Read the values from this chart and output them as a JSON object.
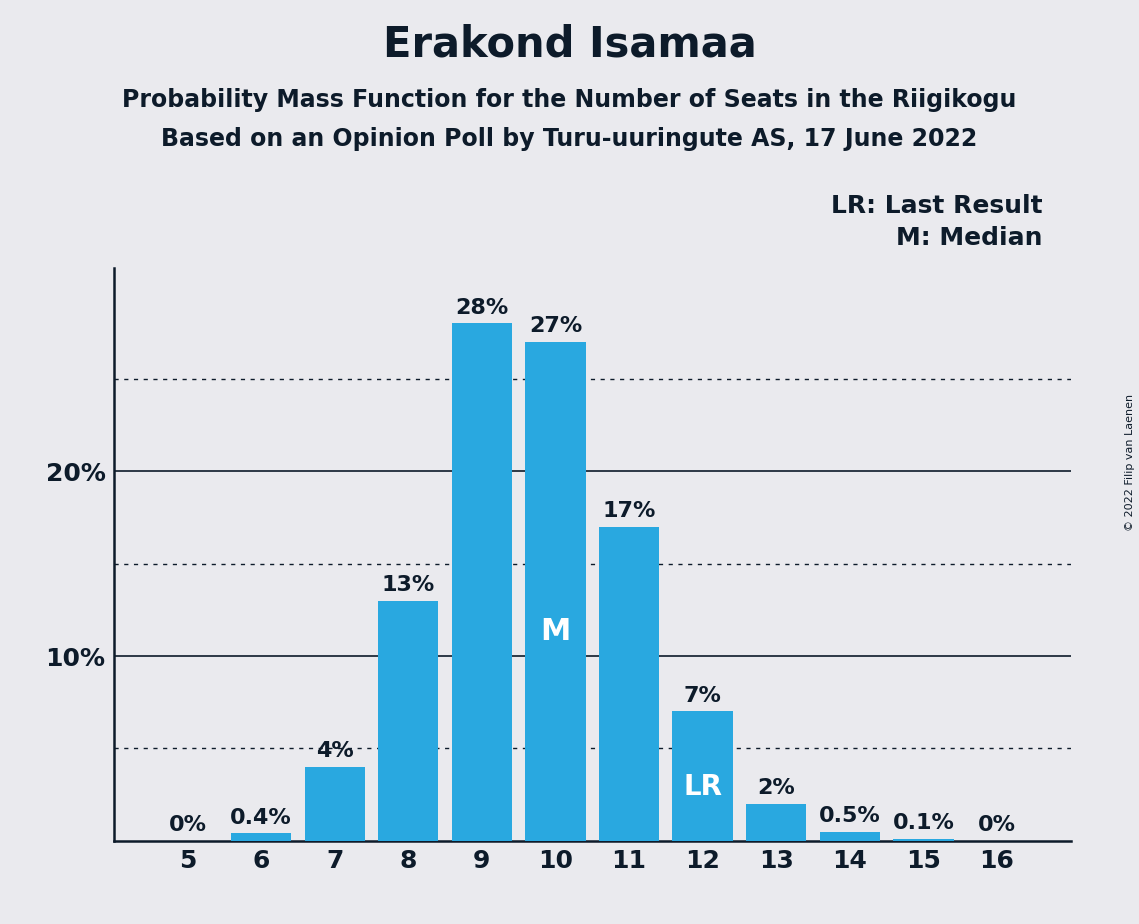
{
  "title": "Erakond Isamaa",
  "subtitle1": "Probability Mass Function for the Number of Seats in the Riigikogu",
  "subtitle2": "Based on an Opinion Poll by Turu-uuringute AS, 17 June 2022",
  "copyright": "© 2022 Filip van Laenen",
  "categories": [
    5,
    6,
    7,
    8,
    9,
    10,
    11,
    12,
    13,
    14,
    15,
    16
  ],
  "values": [
    0.0,
    0.4,
    4.0,
    13.0,
    28.0,
    27.0,
    17.0,
    7.0,
    2.0,
    0.5,
    0.1,
    0.0
  ],
  "labels": [
    "0%",
    "0.4%",
    "4%",
    "13%",
    "28%",
    "27%",
    "17%",
    "7%",
    "2%",
    "0.5%",
    "0.1%",
    "0%"
  ],
  "bar_color": "#29a8e0",
  "background_color": "#eaeaee",
  "text_color": "#0d1b2a",
  "bar_label_color_dark": "#0d1b2a",
  "bar_label_color_light": "#ffffff",
  "median_bar_index": 5,
  "lr_bar_index": 7,
  "legend_line1": "LR: Last Result",
  "legend_line2": "M: Median",
  "solid_yticks": [
    10,
    20
  ],
  "dotted_yticks": [
    25,
    15,
    5
  ],
  "ylim": [
    0,
    31
  ],
  "title_fontsize": 30,
  "subtitle_fontsize": 17,
  "tick_fontsize": 18,
  "bar_label_fontsize": 16,
  "legend_fontsize": 18,
  "inner_label_fontsize": 22
}
